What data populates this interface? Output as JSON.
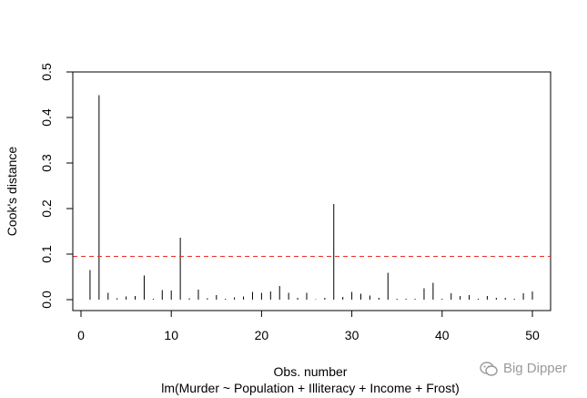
{
  "chart_data": {
    "type": "bar",
    "style": "spike",
    "xlabel": "Obs. number",
    "ylabel": "Cook's distance",
    "subtitle": "lm(Murder ~ Population + Illiteracy + Income + Frost)",
    "xlim": [
      0,
      52
    ],
    "ylim": [
      0,
      0.5
    ],
    "x_ticks": [
      "0",
      "10",
      "20",
      "30",
      "40",
      "50"
    ],
    "y_ticks": [
      "0.0",
      "0.1",
      "0.2",
      "0.3",
      "0.4",
      "0.5"
    ],
    "grid": false,
    "reference_line": {
      "y": 0.095,
      "style": "dashed",
      "color": "#e8302a"
    },
    "x": [
      1,
      2,
      3,
      4,
      5,
      6,
      7,
      8,
      9,
      10,
      11,
      12,
      13,
      14,
      15,
      16,
      17,
      18,
      19,
      20,
      21,
      22,
      23,
      24,
      25,
      26,
      27,
      28,
      29,
      30,
      31,
      32,
      33,
      34,
      35,
      36,
      37,
      38,
      39,
      40,
      41,
      42,
      43,
      44,
      45,
      46,
      47,
      48,
      49,
      50
    ],
    "values": [
      0.065,
      0.449,
      0.015,
      0.003,
      0.007,
      0.008,
      0.053,
      0.002,
      0.021,
      0.02,
      0.136,
      0.003,
      0.022,
      0.003,
      0.01,
      0.002,
      0.005,
      0.007,
      0.017,
      0.015,
      0.018,
      0.03,
      0.015,
      0.004,
      0.015,
      0.001,
      0.004,
      0.21,
      0.006,
      0.017,
      0.013,
      0.009,
      0.004,
      0.059,
      0.002,
      0.002,
      0.002,
      0.025,
      0.037,
      0.002,
      0.014,
      0.008,
      0.01,
      0.002,
      0.008,
      0.004,
      0.004,
      0.002,
      0.014,
      0.018
    ],
    "colors": {
      "line": "#000000",
      "reference": "#e8302a"
    }
  },
  "watermark": {
    "text": "Big Dipper",
    "icon": "wechat-icon"
  }
}
